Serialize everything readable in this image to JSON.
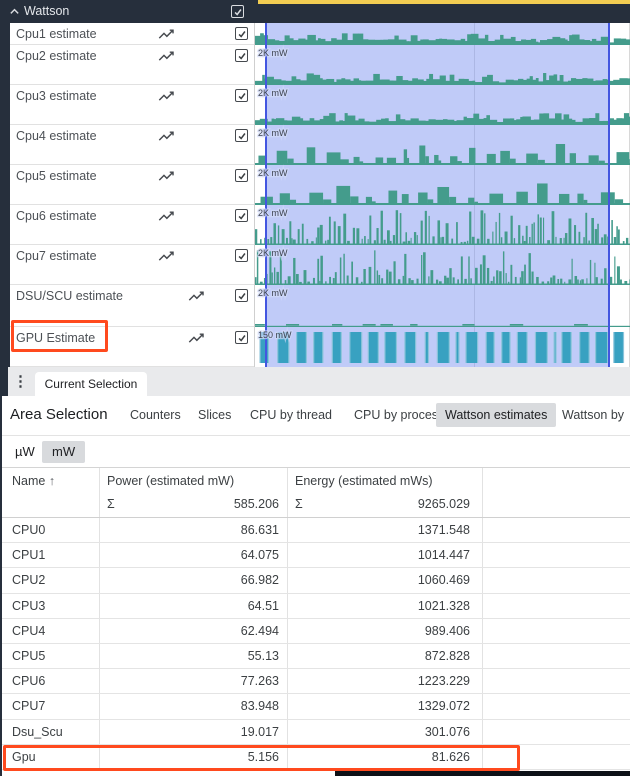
{
  "annotation_color": "#ff4a1e",
  "timeline": {
    "group_header": {
      "label": "Wattson",
      "collapsed": false,
      "checkbox_checked": true
    },
    "minimap_highlight_color": "#f2cd52",
    "header_bg": "#262f3c",
    "selection": {
      "fill": "rgba(124,146,241,0.48)",
      "border": "#4356e0"
    },
    "series_colors": {
      "cpu": "#449c8c",
      "gpu": "#38a1c1",
      "gpu_light": "#8ac4da",
      "gridline": "#d8d8d8"
    },
    "tracks": [
      {
        "name": "Cpu1 estimate",
        "axis_label": "",
        "pattern": "area",
        "seed": 11,
        "checked": true,
        "description": "dense low activity area"
      },
      {
        "name": "Cpu2 estimate",
        "axis_label": "2K mW",
        "pattern": "area",
        "seed": 23,
        "checked": true,
        "description": "dense low activity area"
      },
      {
        "name": "Cpu3 estimate",
        "axis_label": "2K mW",
        "pattern": "area",
        "seed": 37,
        "checked": true,
        "description": "dense low activity area"
      },
      {
        "name": "Cpu4 estimate",
        "axis_label": "2K mW",
        "pattern": "blocks",
        "seed": 41,
        "checked": true,
        "description": "medium block bursts"
      },
      {
        "name": "Cpu5 estimate",
        "axis_label": "2K mW",
        "pattern": "blocks",
        "seed": 59,
        "checked": true,
        "description": "medium block bursts"
      },
      {
        "name": "Cpu6 estimate",
        "axis_label": "2K mW",
        "pattern": "spikes",
        "seed": 67,
        "checked": true,
        "description": "tall dense spikes"
      },
      {
        "name": "Cpu7 estimate",
        "axis_label": "2K mW",
        "pattern": "spikes",
        "seed": 73,
        "checked": true,
        "description": "tall dense spikes"
      },
      {
        "name": "DSU/SCU estimate",
        "axis_label": "2K mW",
        "pattern": "flat",
        "seed": 83,
        "checked": true,
        "description": "near-flat low line"
      },
      {
        "name": "GPU Estimate",
        "axis_label": "150 mW",
        "pattern": "gpu-bars",
        "seed": 97,
        "checked": true,
        "annotated": true,
        "description": "periodic full-height bars"
      }
    ]
  },
  "tabs": {
    "items": [
      {
        "label": "Current Selection",
        "active": true
      }
    ]
  },
  "details": {
    "title": "Area Selection",
    "views": [
      {
        "label": "Counters",
        "active": false
      },
      {
        "label": "Slices",
        "active": false
      },
      {
        "label": "CPU by thread",
        "active": false
      },
      {
        "label": "CPU by process",
        "active": false
      },
      {
        "label": "Wattson estimates",
        "active": true
      },
      {
        "label": "Wattson by",
        "active": false
      }
    ],
    "unit_toggle": [
      {
        "label": "µW",
        "active": false
      },
      {
        "label": "mW",
        "active": true
      }
    ]
  },
  "table": {
    "sum_symbol": "Σ",
    "columns": [
      {
        "label": "Name",
        "sort_icon": "↑"
      },
      {
        "label": "Power (estimated mW)",
        "sum": "585.206"
      },
      {
        "label": "Energy (estimated mWs)",
        "sum": "9265.029"
      }
    ],
    "rows": [
      {
        "name": "CPU0",
        "power": "86.631",
        "energy": "1371.548"
      },
      {
        "name": "CPU1",
        "power": "64.075",
        "energy": "1014.447"
      },
      {
        "name": "CPU2",
        "power": "66.982",
        "energy": "1060.469"
      },
      {
        "name": "CPU3",
        "power": "64.51",
        "energy": "1021.328"
      },
      {
        "name": "CPU4",
        "power": "62.494",
        "energy": "989.406"
      },
      {
        "name": "CPU5",
        "power": "55.13",
        "energy": "872.828"
      },
      {
        "name": "CPU6",
        "power": "77.263",
        "energy": "1223.229"
      },
      {
        "name": "CPU7",
        "power": "83.948",
        "energy": "1329.072"
      },
      {
        "name": "Dsu_Scu",
        "power": "19.017",
        "energy": "301.076"
      },
      {
        "name": "Gpu",
        "power": "5.156",
        "energy": "81.626",
        "annotated": true
      }
    ]
  }
}
